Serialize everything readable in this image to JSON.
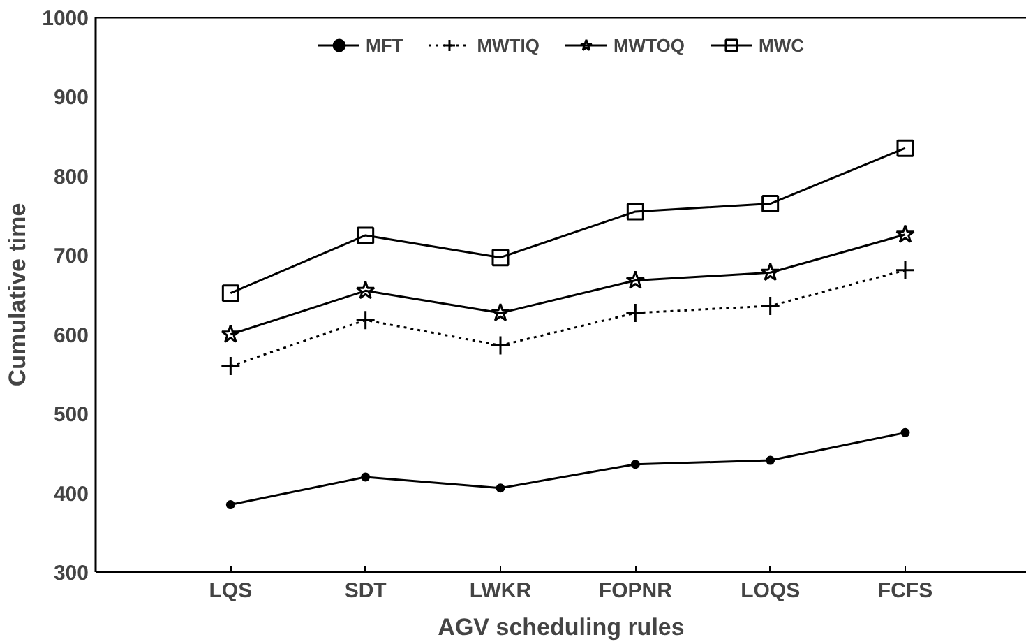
{
  "chart_data": {
    "type": "line",
    "xlabel": "AGV scheduling rules",
    "ylabel": "Cumulative time",
    "categories": [
      "LQS",
      "SDT",
      "LWKR",
      "FOPNR",
      "LOQS",
      "FCFS"
    ],
    "ylim": [
      300,
      1000
    ],
    "yticks": [
      300,
      400,
      500,
      600,
      700,
      800,
      900,
      1000
    ],
    "grid": false,
    "legend": "top",
    "series": [
      {
        "name": "MFT",
        "color": "#000000",
        "marker": "circle",
        "line_style": "solid",
        "values": [
          385,
          420,
          406,
          436,
          441,
          476
        ]
      },
      {
        "name": "MWTIQ",
        "color": "#000000",
        "marker": "cross",
        "line_style": "dotted",
        "values": [
          560,
          618,
          586,
          627,
          636,
          681
        ]
      },
      {
        "name": "MWTOQ",
        "color": "#000000",
        "marker": "star",
        "line_style": "solid",
        "values": [
          600,
          655,
          627,
          668,
          678,
          726
        ]
      },
      {
        "name": "MWC",
        "color": "#000000",
        "marker": "square",
        "line_style": "solid",
        "values": [
          652,
          725,
          697,
          755,
          765,
          835
        ]
      }
    ]
  }
}
